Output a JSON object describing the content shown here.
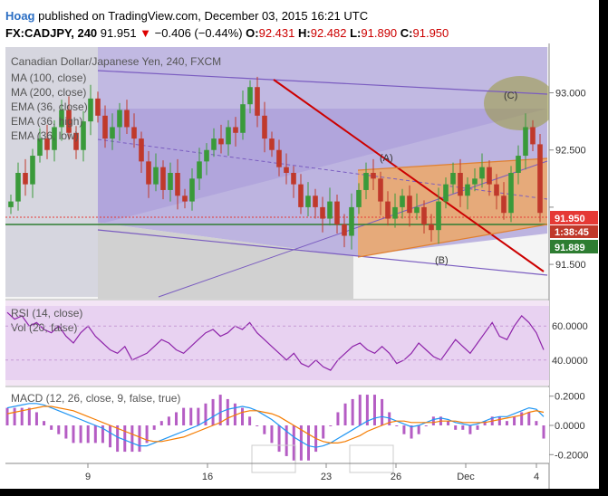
{
  "header": {
    "user": "Hoag",
    "published_text": "published on TradingView.com, December 03, 2015 16:21 UTC",
    "symbol": "FX:CADJPY, 240",
    "last": "91.951",
    "change": "−0.406 (−0.44%)",
    "open_label": "O:",
    "open": "92.431",
    "high_label": "H:",
    "high": "92.482",
    "low_label": "L:",
    "low": "91.890",
    "close_label": "C:",
    "close": "91.950"
  },
  "legend": {
    "title": "Canadian Dollar/Japanese Yen, 240, FXCM",
    "items": [
      "MA (100, close)",
      "MA (200, close)",
      "EMA (36, close)",
      "EMA (36, high)",
      "EMA (36, low)"
    ]
  },
  "annotations": {
    "a": "(A)",
    "b": "(B)",
    "c": "(C)"
  },
  "price_badges": {
    "close": "91.950",
    "countdown": "1:38:45",
    "level": "91.889"
  },
  "indicators": {
    "rsi_label": "RSI (14, close)",
    "vol_label": "Vol (20, false)",
    "macd_label": "MACD (12, 26, close, 9, false, true)"
  },
  "colors": {
    "up_candle": "#3a9a3a",
    "down_candle": "#c0392b",
    "rsi_line": "#8e24aa",
    "macd_line": "#2196f3",
    "signal_line": "#f57c00",
    "histogram": "#9c27b0",
    "channel_fill": "#f4a460",
    "trendline": "#cc0000",
    "badge_close": "#e53935",
    "badge_level": "#2e7d32"
  },
  "chart_data": [
    {
      "type": "candlestick",
      "title": "Canadian Dollar/Japanese Yen, 240, FXCM",
      "x_tick_labels": [
        "9",
        "16",
        "23",
        "26",
        "Dec",
        "4"
      ],
      "y_ticks": [
        91.5,
        92.0,
        92.5,
        93.0
      ],
      "y_tick_labels": [
        "91.500",
        "",
        "92.500",
        "93.000"
      ],
      "ylim": [
        91.2,
        93.4
      ],
      "close_values": [
        92.05,
        92.3,
        92.2,
        92.45,
        92.6,
        92.5,
        92.7,
        92.85,
        92.65,
        92.5,
        92.75,
        92.95,
        92.8,
        92.6,
        92.7,
        92.85,
        92.7,
        92.6,
        92.4,
        92.2,
        92.35,
        92.15,
        92.3,
        92.1,
        92.05,
        92.25,
        92.4,
        92.5,
        92.6,
        92.55,
        92.7,
        92.65,
        92.9,
        93.05,
        92.8,
        92.6,
        92.5,
        92.35,
        92.3,
        92.2,
        92.0,
        92.1,
        92.0,
        91.9,
        92.05,
        91.85,
        91.75,
        92.0,
        92.15,
        92.3,
        92.25,
        92.05,
        91.9,
        92.0,
        92.1,
        91.95,
        92.0,
        91.85,
        91.8,
        92.05,
        92.2,
        92.3,
        92.1,
        92.2,
        92.25,
        92.35,
        92.2,
        92.1,
        91.95,
        92.3,
        92.45,
        92.7,
        92.55,
        91.95
      ],
      "last_close": 91.95
    },
    {
      "type": "line",
      "name": "RSI (14, close)",
      "ylim": [
        25,
        75
      ],
      "y_ticks": [
        40,
        60
      ],
      "y_tick_labels": [
        "40.0000",
        "60.0000"
      ],
      "values": [
        68,
        64,
        66,
        60,
        62,
        58,
        56,
        60,
        54,
        50,
        56,
        60,
        54,
        50,
        46,
        44,
        48,
        40,
        42,
        44,
        48,
        52,
        50,
        46,
        44,
        48,
        52,
        56,
        58,
        54,
        56,
        60,
        58,
        62,
        56,
        52,
        48,
        44,
        40,
        44,
        38,
        36,
        40,
        36,
        34,
        40,
        44,
        48,
        50,
        46,
        44,
        48,
        44,
        38,
        40,
        44,
        50,
        46,
        42,
        40,
        46,
        52,
        48,
        44,
        50,
        56,
        62,
        54,
        52,
        60,
        66,
        62,
        56,
        46
      ]
    },
    {
      "type": "macd",
      "name": "MACD (12, 26, close, 9, false, true)",
      "ylim": [
        -0.26,
        0.26
      ],
      "y_ticks": [
        -0.2,
        0,
        0.2
      ],
      "y_tick_labels": [
        "-0.2000",
        "0.0000",
        "0.2000"
      ],
      "macd": [
        0.12,
        0.13,
        0.14,
        0.15,
        0.15,
        0.14,
        0.12,
        0.1,
        0.08,
        0.06,
        0.04,
        0.02,
        0.0,
        -0.02,
        -0.05,
        -0.08,
        -0.1,
        -0.12,
        -0.14,
        -0.14,
        -0.12,
        -0.1,
        -0.08,
        -0.06,
        -0.04,
        -0.02,
        0.0,
        0.03,
        0.06,
        0.09,
        0.11,
        0.12,
        0.13,
        0.12,
        0.1,
        0.07,
        0.04,
        0.0,
        -0.04,
        -0.08,
        -0.11,
        -0.14,
        -0.15,
        -0.14,
        -0.12,
        -0.09,
        -0.06,
        -0.03,
        0.0,
        0.03,
        0.05,
        0.06,
        0.05,
        0.03,
        0.01,
        -0.01,
        0.0,
        0.02,
        0.04,
        0.05,
        0.04,
        0.02,
        0.01,
        0.0,
        0.01,
        0.03,
        0.05,
        0.06,
        0.06,
        0.08,
        0.1,
        0.12,
        0.11,
        0.06
      ],
      "signal": [
        0.08,
        0.09,
        0.1,
        0.11,
        0.12,
        0.13,
        0.13,
        0.12,
        0.11,
        0.1,
        0.08,
        0.06,
        0.04,
        0.02,
        0.0,
        -0.02,
        -0.04,
        -0.06,
        -0.08,
        -0.1,
        -0.11,
        -0.11,
        -0.1,
        -0.09,
        -0.08,
        -0.06,
        -0.04,
        -0.02,
        0.0,
        0.02,
        0.05,
        0.07,
        0.09,
        0.1,
        0.1,
        0.09,
        0.08,
        0.06,
        0.03,
        0.0,
        -0.03,
        -0.06,
        -0.09,
        -0.11,
        -0.12,
        -0.12,
        -0.11,
        -0.09,
        -0.07,
        -0.04,
        -0.02,
        0.0,
        0.02,
        0.03,
        0.03,
        0.02,
        0.02,
        0.02,
        0.02,
        0.03,
        0.03,
        0.03,
        0.02,
        0.02,
        0.02,
        0.02,
        0.03,
        0.04,
        0.05,
        0.06,
        0.07,
        0.09,
        0.1,
        0.09
      ]
    }
  ]
}
